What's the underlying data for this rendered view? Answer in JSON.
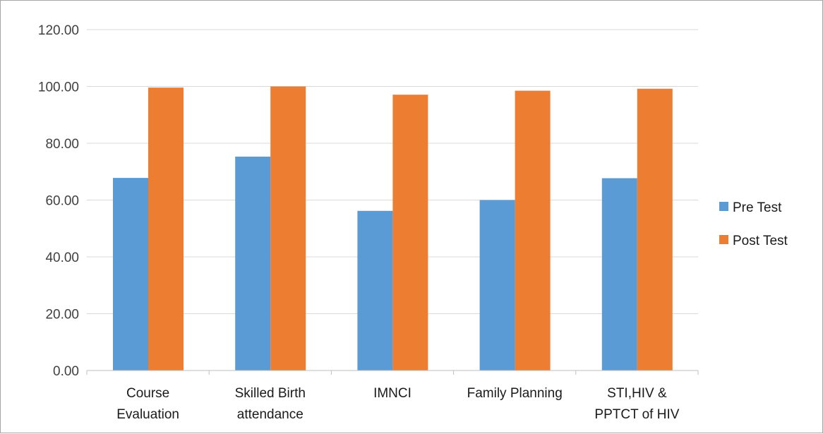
{
  "chart_data": {
    "type": "bar",
    "categories": [
      [
        "Course",
        "Evaluation"
      ],
      [
        "Skilled Birth",
        "attendance"
      ],
      [
        "IMNCI"
      ],
      [
        "Family Planning"
      ],
      [
        "STI,HIV &",
        "PPTCT of HIV"
      ]
    ],
    "series": [
      {
        "name": "Pre Test",
        "color": "#5b9bd5",
        "values": [
          67.8,
          75.3,
          56.2,
          60.0,
          67.7
        ]
      },
      {
        "name": "Post Test",
        "color": "#ed7d31",
        "values": [
          99.6,
          100.0,
          97.1,
          98.5,
          99.2
        ]
      }
    ],
    "ylim": [
      0,
      120
    ],
    "yticks": [
      "0.00",
      "20.00",
      "40.00",
      "60.00",
      "80.00",
      "100.00",
      "120.00"
    ],
    "ytick_values": [
      0,
      20,
      40,
      60,
      80,
      100,
      120
    ],
    "grid": true,
    "legend": "right",
    "title": "",
    "xlabel": "",
    "ylabel": ""
  }
}
